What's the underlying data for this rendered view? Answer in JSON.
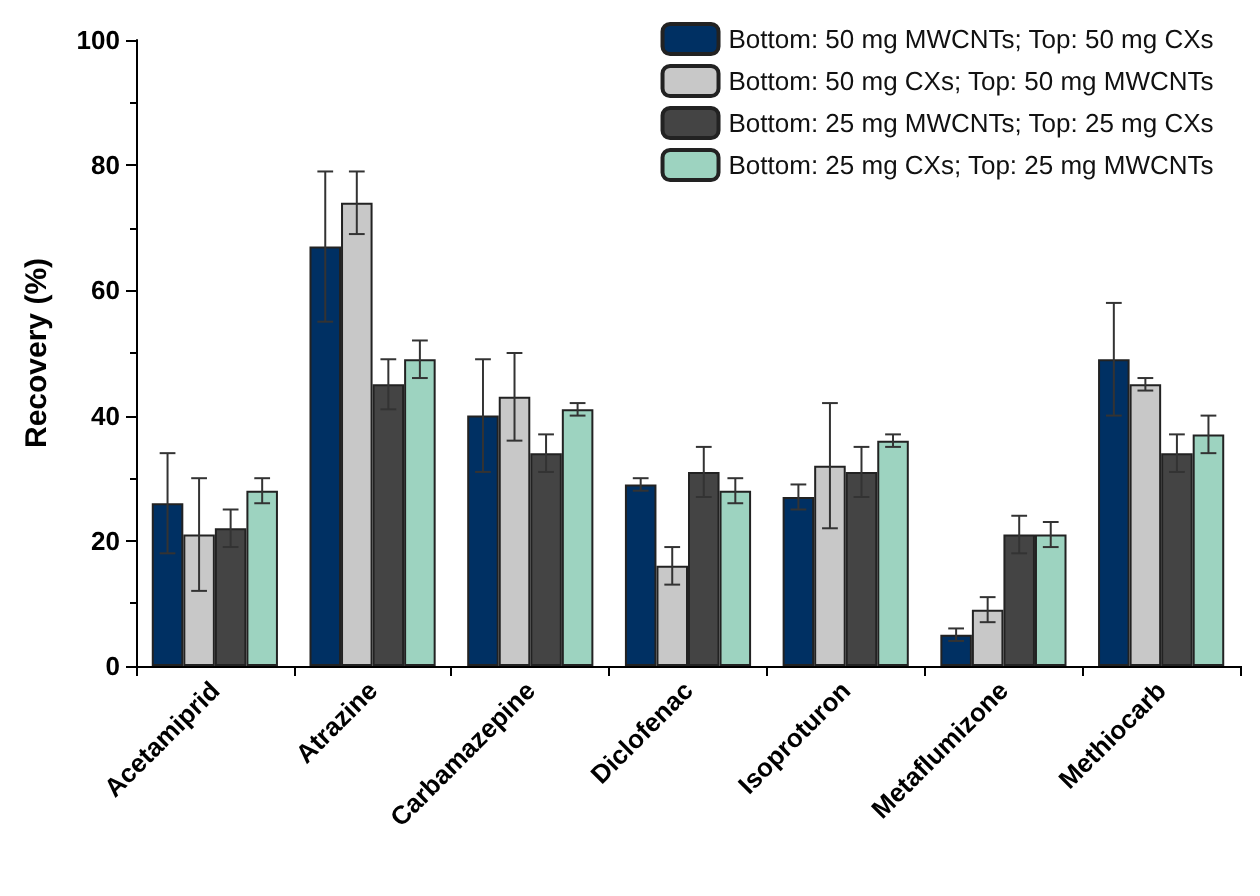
{
  "chart_data": {
    "type": "bar",
    "ylabel": "Recovery (%)",
    "categories": [
      "Acetamiprid",
      "Atrazine",
      "Carbamazepine",
      "Diclofenac",
      "Isoproturon",
      "Metaflumizone",
      "Methiocarb"
    ],
    "series": [
      {
        "name": "Bottom: 50 mg MWCNTs; Top: 50 mg CXs",
        "color": "#003063",
        "values": [
          26,
          67,
          40,
          29,
          27,
          5,
          49
        ],
        "errors": [
          8,
          12,
          9,
          1,
          2,
          1,
          9
        ]
      },
      {
        "name": "Bottom: 50 mg CXs; Top: 50 mg MWCNTs",
        "color": "#c8c8c8",
        "values": [
          21,
          74,
          43,
          16,
          32,
          9,
          45
        ],
        "errors": [
          9,
          5,
          7,
          3,
          10,
          2,
          1
        ]
      },
      {
        "name": "Bottom: 25 mg MWCNTs; Top: 25 mg CXs",
        "color": "#444444",
        "values": [
          22,
          45,
          34,
          31,
          31,
          21,
          34
        ],
        "errors": [
          3,
          4,
          3,
          4,
          4,
          3,
          3
        ]
      },
      {
        "name": "Bottom: 25 mg CXs; Top: 25 mg MWCNTs",
        "color": "#9dd3c0",
        "values": [
          28,
          49,
          41,
          28,
          36,
          21,
          37
        ],
        "errors": [
          2,
          3,
          1,
          2,
          1,
          2,
          3
        ]
      }
    ],
    "ylim": [
      0,
      100
    ],
    "yticks": [
      0,
      20,
      40,
      60,
      80,
      100
    ],
    "grid": false,
    "legend": "top right"
  }
}
